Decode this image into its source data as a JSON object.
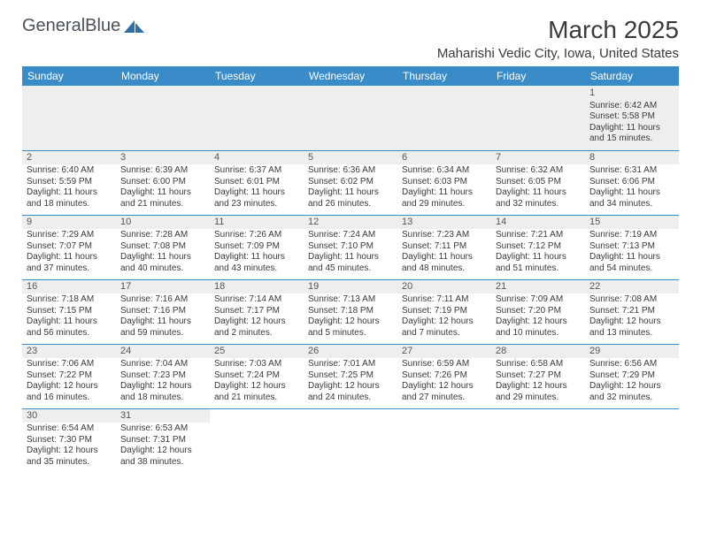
{
  "logo": {
    "part1": "General",
    "part2": "Blue"
  },
  "title": "March 2025",
  "location": "Maharishi Vedic City, Iowa, United States",
  "colors": {
    "header_bg": "#3a8cc9",
    "header_fg": "#ffffff",
    "row_divider": "#3a8cc9",
    "daynum_bg": "#eeeeee",
    "text": "#3a3a3a",
    "logo_accent": "#2f6fa8"
  },
  "weekdays": [
    "Sunday",
    "Monday",
    "Tuesday",
    "Wednesday",
    "Thursday",
    "Friday",
    "Saturday"
  ],
  "weeks": [
    [
      null,
      null,
      null,
      null,
      null,
      null,
      {
        "n": "1",
        "sr": "6:42 AM",
        "ss": "5:58 PM",
        "dl": "11 hours and 15 minutes."
      }
    ],
    [
      {
        "n": "2",
        "sr": "6:40 AM",
        "ss": "5:59 PM",
        "dl": "11 hours and 18 minutes."
      },
      {
        "n": "3",
        "sr": "6:39 AM",
        "ss": "6:00 PM",
        "dl": "11 hours and 21 minutes."
      },
      {
        "n": "4",
        "sr": "6:37 AM",
        "ss": "6:01 PM",
        "dl": "11 hours and 23 minutes."
      },
      {
        "n": "5",
        "sr": "6:36 AM",
        "ss": "6:02 PM",
        "dl": "11 hours and 26 minutes."
      },
      {
        "n": "6",
        "sr": "6:34 AM",
        "ss": "6:03 PM",
        "dl": "11 hours and 29 minutes."
      },
      {
        "n": "7",
        "sr": "6:32 AM",
        "ss": "6:05 PM",
        "dl": "11 hours and 32 minutes."
      },
      {
        "n": "8",
        "sr": "6:31 AM",
        "ss": "6:06 PM",
        "dl": "11 hours and 34 minutes."
      }
    ],
    [
      {
        "n": "9",
        "sr": "7:29 AM",
        "ss": "7:07 PM",
        "dl": "11 hours and 37 minutes."
      },
      {
        "n": "10",
        "sr": "7:28 AM",
        "ss": "7:08 PM",
        "dl": "11 hours and 40 minutes."
      },
      {
        "n": "11",
        "sr": "7:26 AM",
        "ss": "7:09 PM",
        "dl": "11 hours and 43 minutes."
      },
      {
        "n": "12",
        "sr": "7:24 AM",
        "ss": "7:10 PM",
        "dl": "11 hours and 45 minutes."
      },
      {
        "n": "13",
        "sr": "7:23 AM",
        "ss": "7:11 PM",
        "dl": "11 hours and 48 minutes."
      },
      {
        "n": "14",
        "sr": "7:21 AM",
        "ss": "7:12 PM",
        "dl": "11 hours and 51 minutes."
      },
      {
        "n": "15",
        "sr": "7:19 AM",
        "ss": "7:13 PM",
        "dl": "11 hours and 54 minutes."
      }
    ],
    [
      {
        "n": "16",
        "sr": "7:18 AM",
        "ss": "7:15 PM",
        "dl": "11 hours and 56 minutes."
      },
      {
        "n": "17",
        "sr": "7:16 AM",
        "ss": "7:16 PM",
        "dl": "11 hours and 59 minutes."
      },
      {
        "n": "18",
        "sr": "7:14 AM",
        "ss": "7:17 PM",
        "dl": "12 hours and 2 minutes."
      },
      {
        "n": "19",
        "sr": "7:13 AM",
        "ss": "7:18 PM",
        "dl": "12 hours and 5 minutes."
      },
      {
        "n": "20",
        "sr": "7:11 AM",
        "ss": "7:19 PM",
        "dl": "12 hours and 7 minutes."
      },
      {
        "n": "21",
        "sr": "7:09 AM",
        "ss": "7:20 PM",
        "dl": "12 hours and 10 minutes."
      },
      {
        "n": "22",
        "sr": "7:08 AM",
        "ss": "7:21 PM",
        "dl": "12 hours and 13 minutes."
      }
    ],
    [
      {
        "n": "23",
        "sr": "7:06 AM",
        "ss": "7:22 PM",
        "dl": "12 hours and 16 minutes."
      },
      {
        "n": "24",
        "sr": "7:04 AM",
        "ss": "7:23 PM",
        "dl": "12 hours and 18 minutes."
      },
      {
        "n": "25",
        "sr": "7:03 AM",
        "ss": "7:24 PM",
        "dl": "12 hours and 21 minutes."
      },
      {
        "n": "26",
        "sr": "7:01 AM",
        "ss": "7:25 PM",
        "dl": "12 hours and 24 minutes."
      },
      {
        "n": "27",
        "sr": "6:59 AM",
        "ss": "7:26 PM",
        "dl": "12 hours and 27 minutes."
      },
      {
        "n": "28",
        "sr": "6:58 AM",
        "ss": "7:27 PM",
        "dl": "12 hours and 29 minutes."
      },
      {
        "n": "29",
        "sr": "6:56 AM",
        "ss": "7:29 PM",
        "dl": "12 hours and 32 minutes."
      }
    ],
    [
      {
        "n": "30",
        "sr": "6:54 AM",
        "ss": "7:30 PM",
        "dl": "12 hours and 35 minutes."
      },
      {
        "n": "31",
        "sr": "6:53 AM",
        "ss": "7:31 PM",
        "dl": "12 hours and 38 minutes."
      },
      null,
      null,
      null,
      null,
      null
    ]
  ],
  "labels": {
    "sunrise": "Sunrise:",
    "sunset": "Sunset:",
    "daylight": "Daylight:"
  }
}
